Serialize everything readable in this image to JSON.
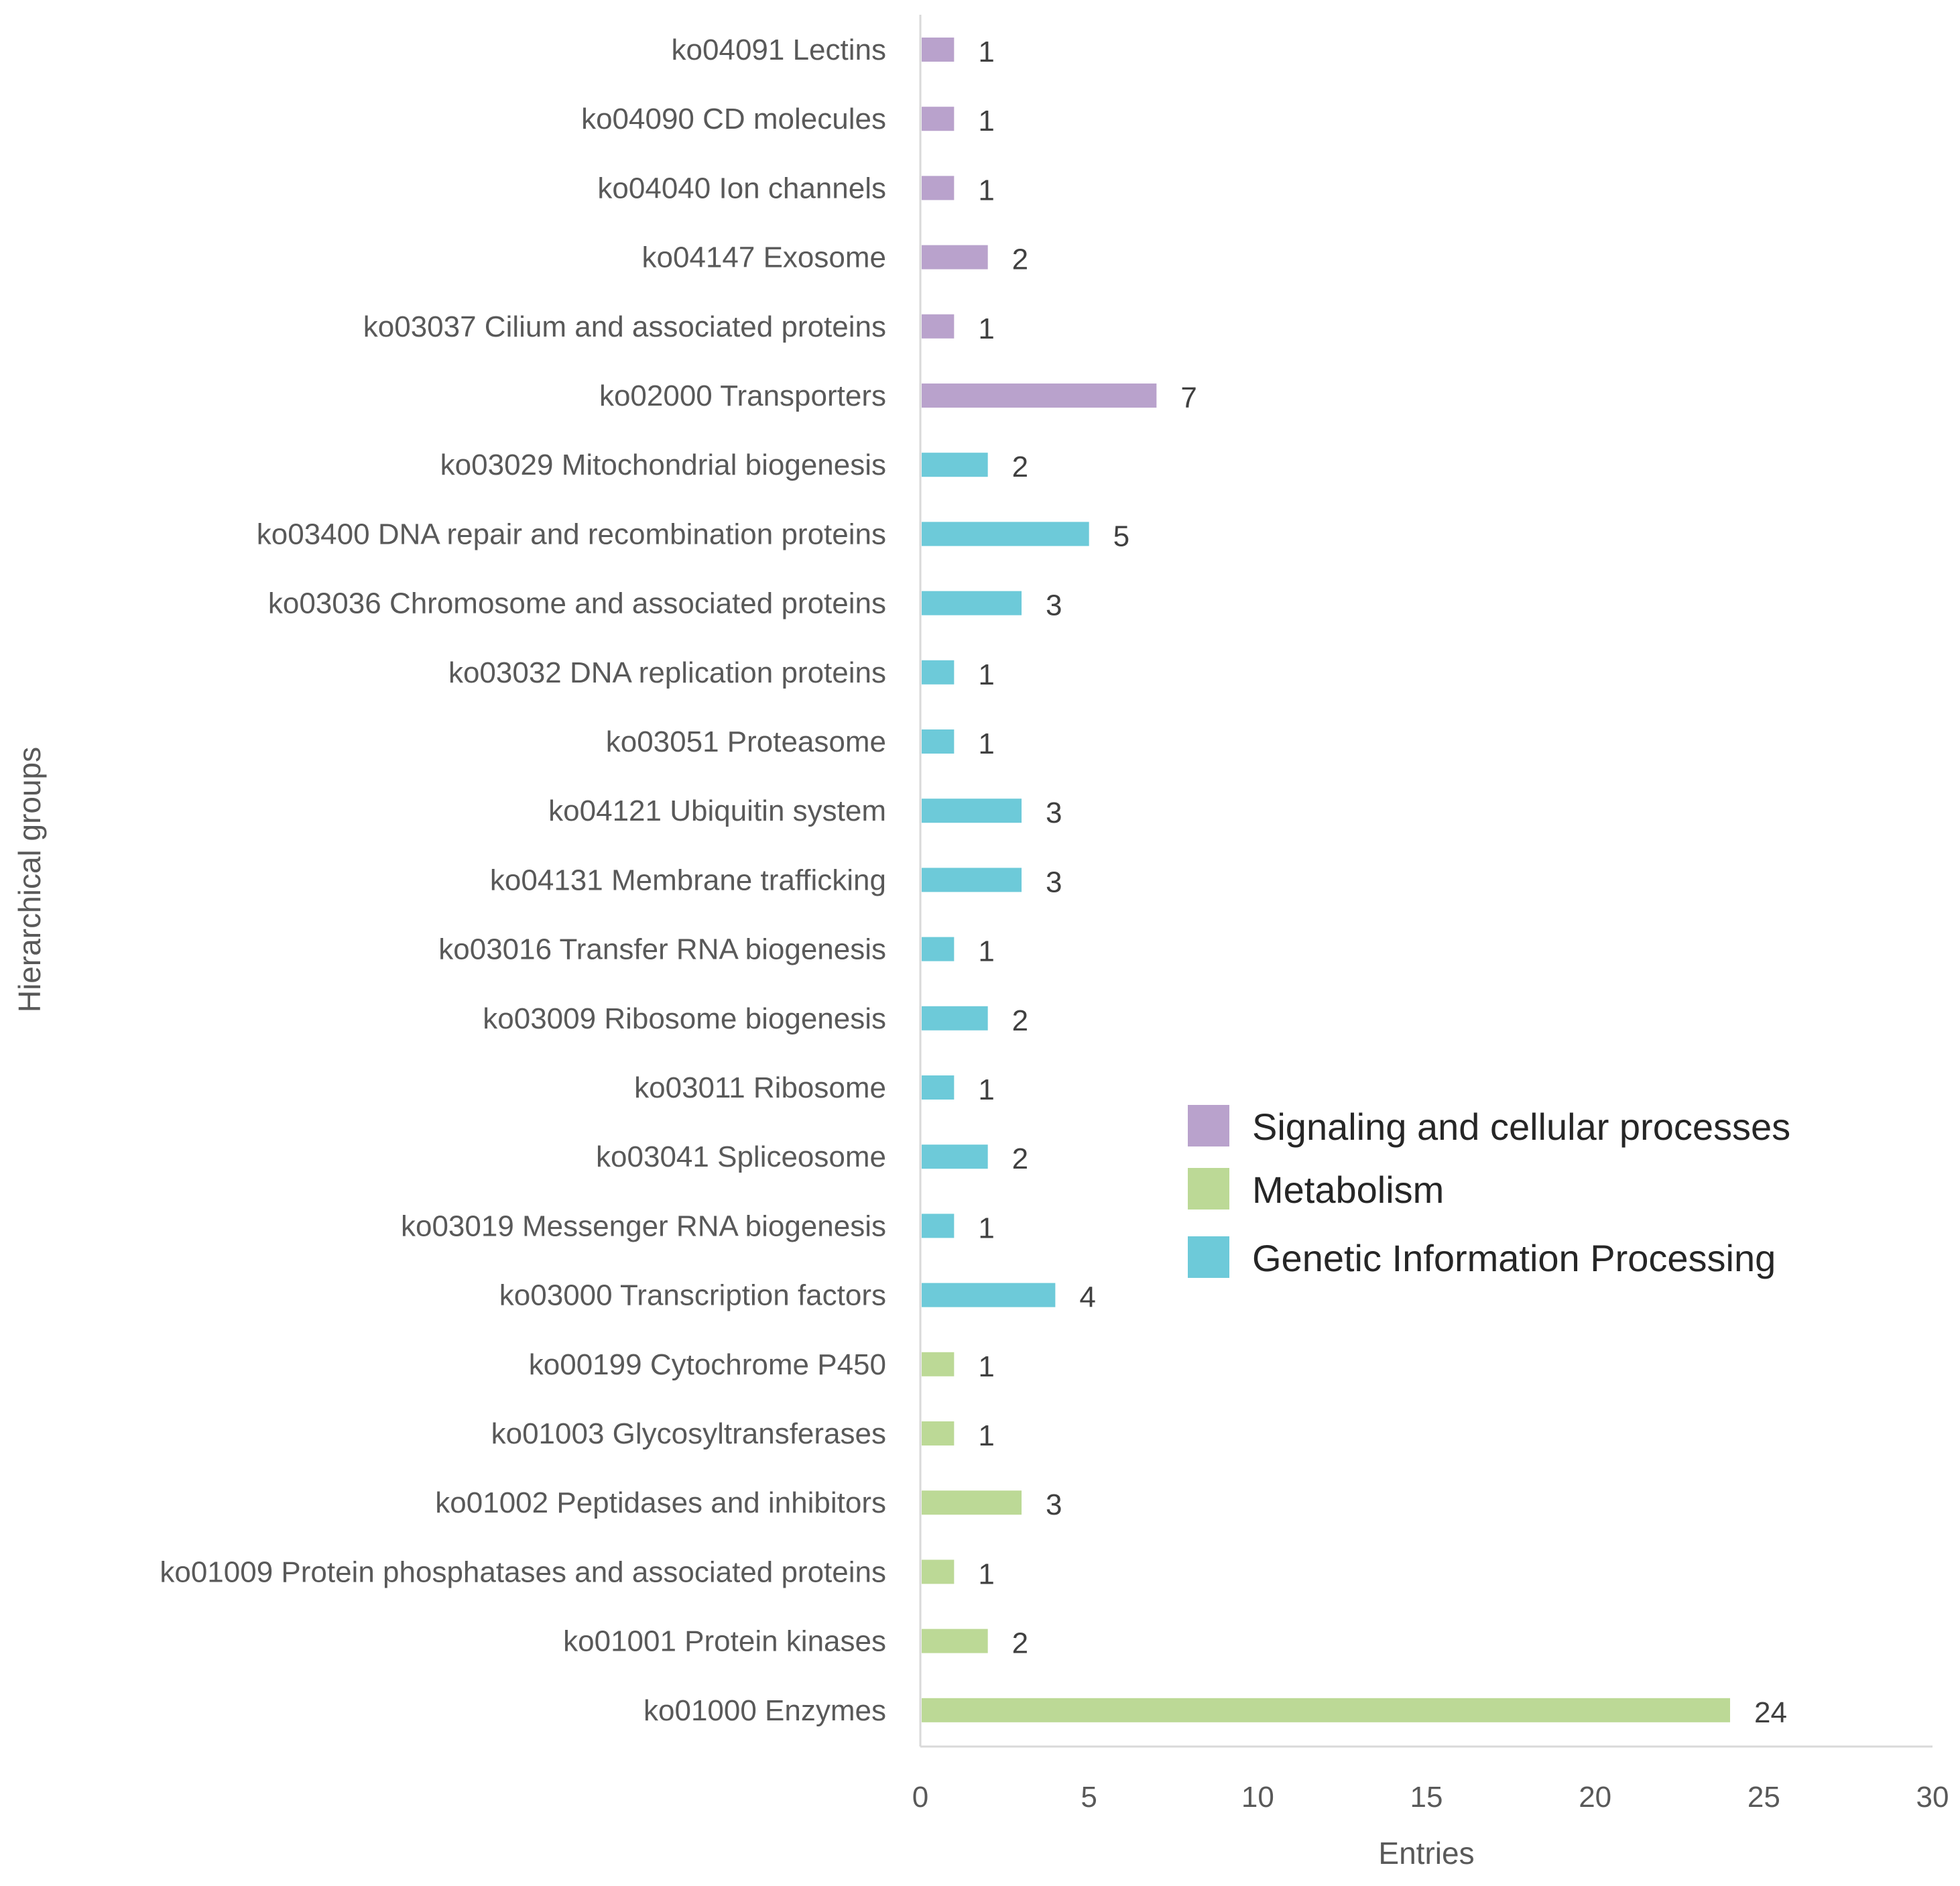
{
  "chart_data": {
    "type": "bar",
    "orientation": "horizontal",
    "title": "",
    "xlabel": "Entries",
    "ylabel": "Hierarchical groups",
    "xlim": [
      0,
      30
    ],
    "xticks": [
      0,
      5,
      10,
      15,
      20,
      25,
      30
    ],
    "grid": false,
    "legend_position": "right-middle",
    "colors": {
      "Signaling and cellular processes": "#b9a2cc",
      "Metabolism": "#bcd996",
      "Genetic Information Processing": "#6dcad9"
    },
    "legend": [
      "Signaling and cellular processes",
      "Metabolism",
      "Genetic Information Processing"
    ],
    "categories": [
      "ko04091 Lectins",
      "ko04090 CD molecules",
      "ko04040 Ion channels",
      "ko04147 Exosome",
      "ko03037 Cilium and associated proteins",
      "ko02000 Transporters",
      "ko03029 Mitochondrial biogenesis",
      "ko03400 DNA repair and recombination proteins",
      "ko03036 Chromosome and associated proteins",
      "ko03032 DNA replication proteins",
      "ko03051 Proteasome",
      "ko04121 Ubiquitin system",
      "ko04131 Membrane trafficking",
      "ko03016 Transfer RNA biogenesis",
      "ko03009 Ribosome biogenesis",
      "ko03011 Ribosome",
      "ko03041 Spliceosome",
      "ko03019 Messenger RNA biogenesis",
      "ko03000 Transcription factors",
      "ko00199 Cytochrome P450",
      "ko01003 Glycosyltransferases",
      "ko01002 Peptidases and inhibitors",
      "ko01009 Protein phosphatases and associated proteins",
      "ko01001 Protein kinases",
      "ko01000 Enzymes"
    ],
    "values": [
      1,
      1,
      1,
      2,
      1,
      7,
      2,
      5,
      3,
      1,
      1,
      3,
      3,
      1,
      2,
      1,
      2,
      1,
      4,
      1,
      1,
      3,
      1,
      2,
      24
    ],
    "groups": [
      "Signaling and cellular processes",
      "Signaling and cellular processes",
      "Signaling and cellular processes",
      "Signaling and cellular processes",
      "Signaling and cellular processes",
      "Signaling and cellular processes",
      "Genetic Information Processing",
      "Genetic Information Processing",
      "Genetic Information Processing",
      "Genetic Information Processing",
      "Genetic Information Processing",
      "Genetic Information Processing",
      "Genetic Information Processing",
      "Genetic Information Processing",
      "Genetic Information Processing",
      "Genetic Information Processing",
      "Genetic Information Processing",
      "Genetic Information Processing",
      "Genetic Information Processing",
      "Metabolism",
      "Metabolism",
      "Metabolism",
      "Metabolism",
      "Metabolism",
      "Metabolism"
    ]
  }
}
